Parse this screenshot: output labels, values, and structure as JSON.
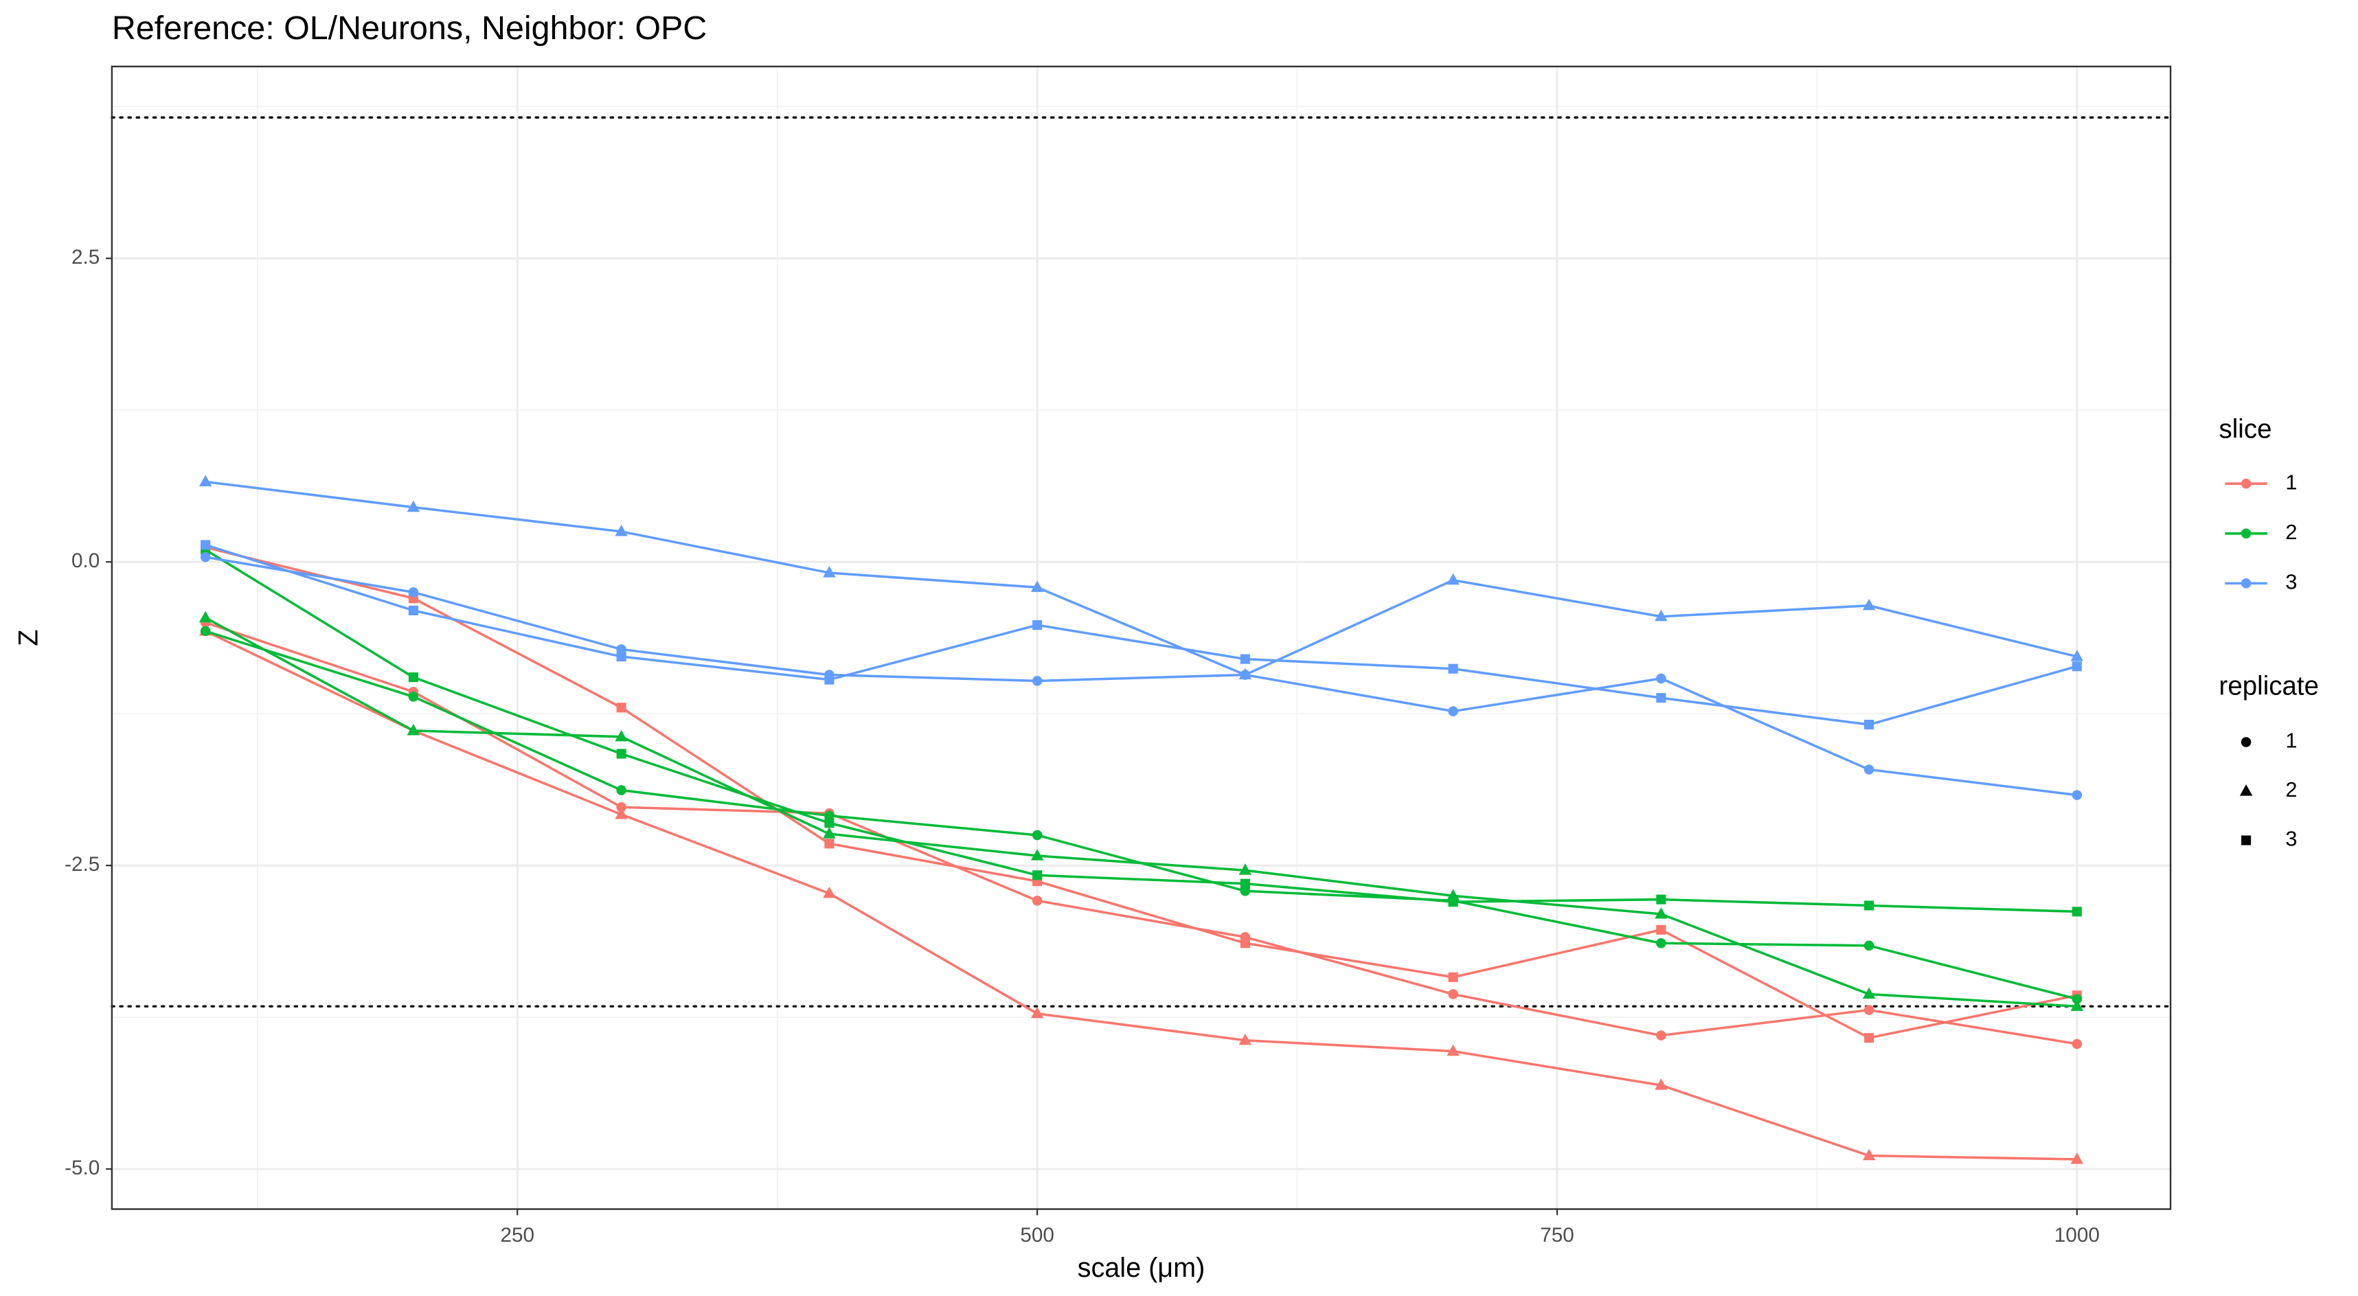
{
  "chart_data": {
    "type": "line",
    "title": "Reference: OL/Neurons, Neighbor: OPC",
    "x_label": "scale (μm)",
    "y_label": "Z",
    "x": [
      100,
      200,
      300,
      400,
      500,
      600,
      700,
      800,
      900,
      1000
    ],
    "xlim": [
      55,
      1045
    ],
    "ylim": [
      -5.33,
      4.08
    ],
    "xticks": [
      250,
      500,
      750,
      1000
    ],
    "yticks": [
      {
        "value": -5,
        "label": "-5.0"
      },
      {
        "value": -2.5,
        "label": "-2.5"
      },
      {
        "value": 0,
        "label": "0.0"
      },
      {
        "value": 2.5,
        "label": "2.5"
      }
    ],
    "x_minor_ticks": [
      125,
      375,
      625,
      875
    ],
    "y_minor_ticks": [
      -3.75,
      -1.25,
      1.25,
      3.75
    ],
    "grid": true,
    "hlines": [
      3.66,
      -3.66
    ],
    "legend": {
      "slice": {
        "title": "slice",
        "items": [
          {
            "label": "1",
            "color": "#F8766D"
          },
          {
            "label": "2",
            "color": "#00BA38"
          },
          {
            "label": "3",
            "color": "#619CFF"
          }
        ]
      },
      "replicate": {
        "title": "replicate",
        "items": [
          {
            "label": "1",
            "shape": "circle"
          },
          {
            "label": "2",
            "shape": "triangle"
          },
          {
            "label": "3",
            "shape": "square"
          }
        ]
      }
    },
    "series": [
      {
        "color": "#F8766D",
        "shape": "circle",
        "values": [
          -0.5,
          -1.07,
          -2.02,
          -2.07,
          -2.79,
          -3.09,
          -3.56,
          -3.9,
          -3.69,
          -3.97
        ]
      },
      {
        "color": "#F8766D",
        "shape": "triangle",
        "values": [
          -0.57,
          -1.39,
          -2.08,
          -2.73,
          -3.72,
          -3.94,
          -4.03,
          -4.31,
          -4.89,
          -4.92
        ]
      },
      {
        "color": "#F8766D",
        "shape": "square",
        "values": [
          0.12,
          -0.3,
          -1.2,
          -2.32,
          -2.63,
          -3.14,
          -3.42,
          -3.03,
          -3.92,
          -3.57
        ]
      },
      {
        "color": "#00BA38",
        "shape": "circle",
        "values": [
          -0.57,
          -1.11,
          -1.88,
          -2.09,
          -2.25,
          -2.71,
          -2.79,
          -3.14,
          -3.16,
          -3.6
        ]
      },
      {
        "color": "#00BA38",
        "shape": "triangle",
        "values": [
          -0.46,
          -1.39,
          -1.44,
          -2.24,
          -2.42,
          -2.54,
          -2.75,
          -2.9,
          -3.56,
          -3.66
        ]
      },
      {
        "color": "#00BA38",
        "shape": "square",
        "values": [
          0.1,
          -0.95,
          -1.58,
          -2.15,
          -2.58,
          -2.65,
          -2.8,
          -2.78,
          -2.83,
          -2.88
        ]
      },
      {
        "color": "#619CFF",
        "shape": "circle",
        "values": [
          0.04,
          -0.25,
          -0.72,
          -0.93,
          -0.98,
          -0.93,
          -1.23,
          -0.96,
          -1.71,
          -1.92
        ]
      },
      {
        "color": "#619CFF",
        "shape": "triangle",
        "values": [
          0.66,
          0.45,
          0.25,
          -0.09,
          -0.21,
          -0.93,
          -0.15,
          -0.45,
          -0.36,
          -0.78
        ]
      },
      {
        "color": "#619CFF",
        "shape": "square",
        "values": [
          0.14,
          -0.4,
          -0.78,
          -0.97,
          -0.52,
          -0.8,
          -0.88,
          -1.12,
          -1.34,
          -0.86
        ]
      }
    ]
  }
}
